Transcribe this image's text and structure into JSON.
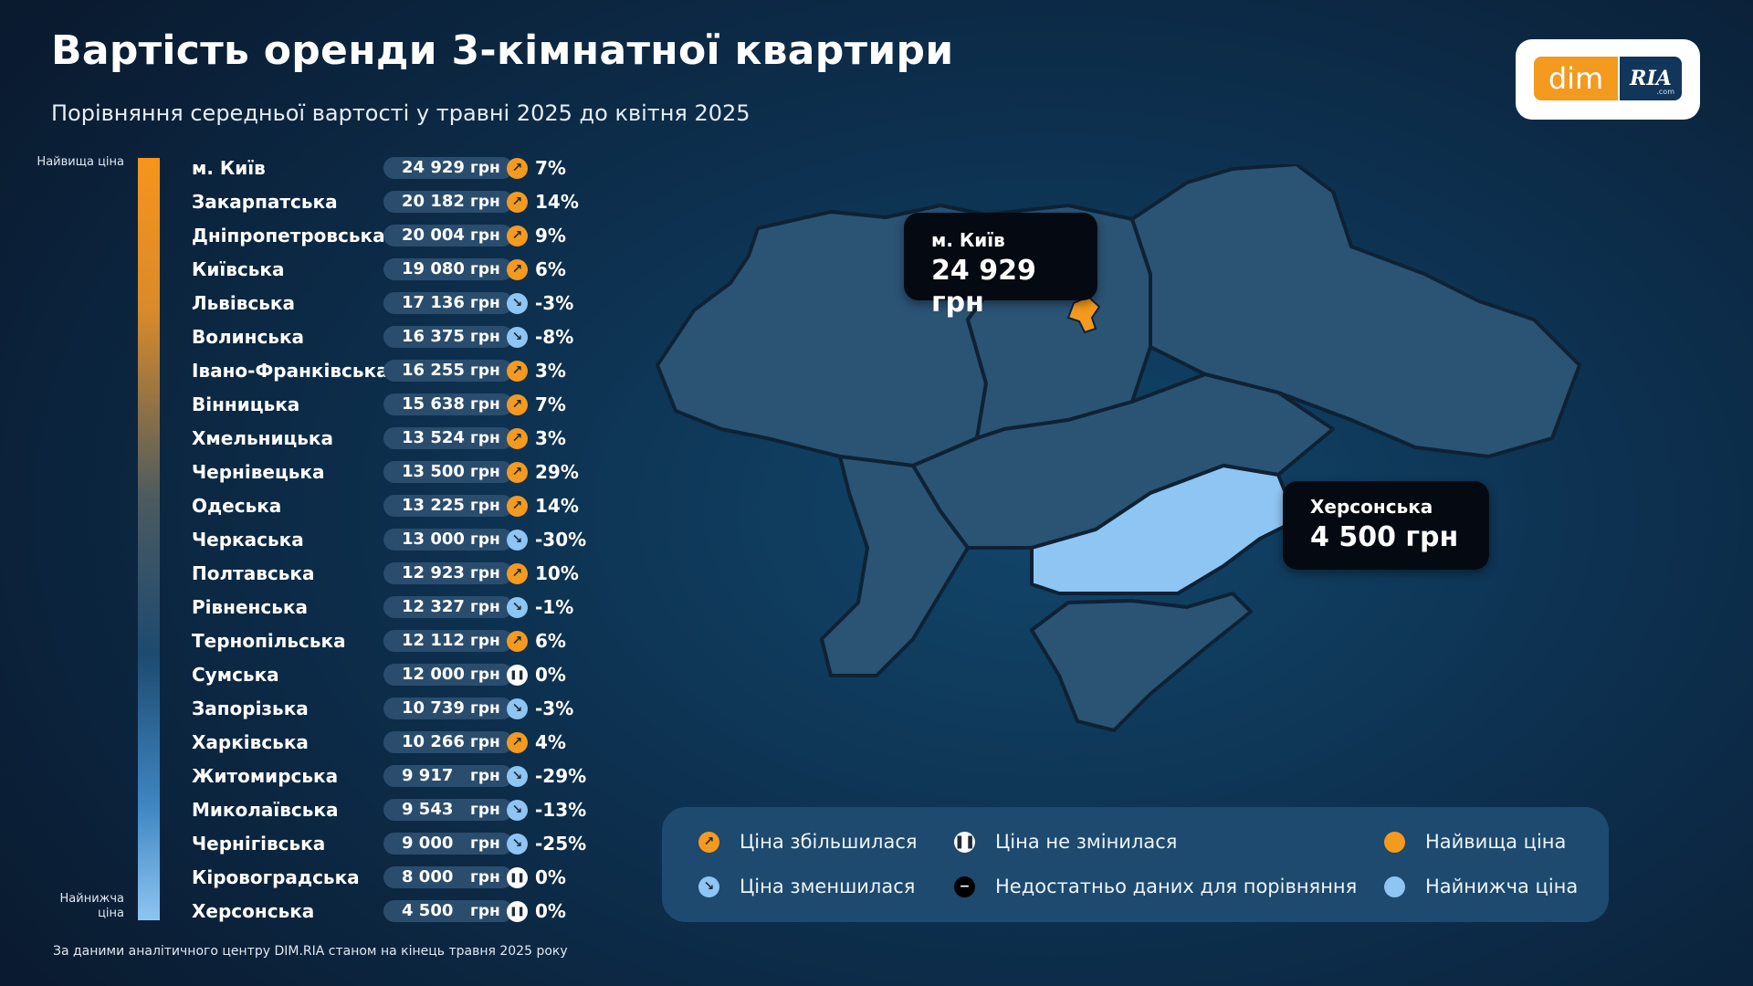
{
  "header": {
    "title": "Вартість оренди 3-кімнатної квартири",
    "subtitle": "Порівняння середньої вартості у травні 2025 до квітня 2025"
  },
  "logo": {
    "left": "dim",
    "right": "RIA",
    "suffix": ".com"
  },
  "scale": {
    "top_label": "Найвища ціна",
    "bottom_label": "Найнижча ціна"
  },
  "currency": "грн",
  "colors": {
    "increase": "#f39a1f",
    "decrease": "#8ec5f2",
    "highest": "#f39a1f",
    "lowest": "#8ec5f2",
    "kherson_region": "#8ec5f2",
    "kyiv_city": "#f39a1f"
  },
  "chart_data": {
    "type": "table",
    "columns": [
      "region",
      "price_uah",
      "change_direction",
      "change_pct"
    ],
    "rows": [
      {
        "region": "м. Київ",
        "price": "24 929",
        "dir": "up",
        "pct": "7%"
      },
      {
        "region": "Закарпатська",
        "price": "20 182",
        "dir": "up",
        "pct": "14%"
      },
      {
        "region": "Дніпропетровська",
        "price": "20 004",
        "dir": "up",
        "pct": "9%"
      },
      {
        "region": "Київська",
        "price": "19 080",
        "dir": "up",
        "pct": "6%"
      },
      {
        "region": "Львівська",
        "price": "17 136",
        "dir": "down",
        "pct": "-3%"
      },
      {
        "region": "Волинська",
        "price": "16 375",
        "dir": "down",
        "pct": "-8%"
      },
      {
        "region": "Івано-Франківська",
        "price": "16 255",
        "dir": "up",
        "pct": "3%"
      },
      {
        "region": "Вінницька",
        "price": "15 638",
        "dir": "up",
        "pct": "7%"
      },
      {
        "region": "Хмельницька",
        "price": "13 524",
        "dir": "up",
        "pct": "3%"
      },
      {
        "region": "Чернівецька",
        "price": "13 500",
        "dir": "up",
        "pct": "29%"
      },
      {
        "region": "Одеська",
        "price": "13 225",
        "dir": "up",
        "pct": "14%"
      },
      {
        "region": "Черкаська",
        "price": "13 000",
        "dir": "down",
        "pct": "-30%"
      },
      {
        "region": "Полтавська",
        "price": "12 923",
        "dir": "up",
        "pct": "10%"
      },
      {
        "region": "Рівненська",
        "price": "12 327",
        "dir": "down",
        "pct": "-1%"
      },
      {
        "region": "Тернопільська",
        "price": "12 112",
        "dir": "up",
        "pct": "6%"
      },
      {
        "region": "Сумська",
        "price": "12 000",
        "dir": "same",
        "pct": "0%"
      },
      {
        "region": "Запорізька",
        "price": "10 739",
        "dir": "down",
        "pct": "-3%"
      },
      {
        "region": "Харківська",
        "price": "10 266",
        "dir": "up",
        "pct": "4%"
      },
      {
        "region": "Житомирська",
        "price": "9 917",
        "dir": "down",
        "pct": "-29%"
      },
      {
        "region": "Миколаївська",
        "price": "9 543",
        "dir": "down",
        "pct": "-13%"
      },
      {
        "region": "Чернігівська",
        "price": "9 000",
        "dir": "down",
        "pct": "-25%"
      },
      {
        "region": "Кіровоградська",
        "price": "8 000",
        "dir": "same",
        "pct": "0%"
      },
      {
        "region": "Херсонська",
        "price": "4 500",
        "dir": "same",
        "pct": "0%"
      }
    ]
  },
  "map": {
    "callouts": {
      "kyiv": {
        "name": "м. Київ",
        "value": "24 929 грн"
      },
      "kherson": {
        "name": "Херсонська",
        "value": "4 500 грн"
      }
    }
  },
  "legend": {
    "increase": "Ціна збільшилася",
    "decrease": "Ціна зменшилася",
    "same": "Ціна не змінилася",
    "na": "Недостатньо даних для порівняння",
    "highest": "Найвища ціна",
    "lowest": "Найнижча ціна"
  },
  "icons": {
    "up": "arrow-up-right-icon",
    "down": "arrow-down-right-icon",
    "same": "pause-icon",
    "na": "minus-icon"
  },
  "source": "За даними аналітичного центру DIM.RIA станом на кінець травня 2025 року"
}
